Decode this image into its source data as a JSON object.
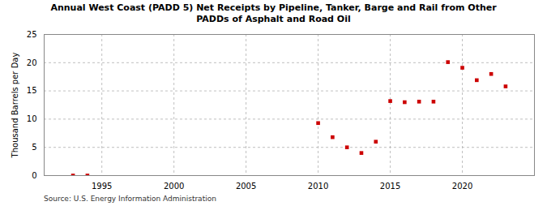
{
  "chart_data": {
    "type": "scatter",
    "title": "Annual West Coast (PADD 5) Net Receipts by Pipeline, Tanker, Barge and Rail from Other\nPADDs of Asphalt and Road Oil",
    "ylabel": "Thousand Barrels per Day",
    "annotations": [
      "Source: U.S. Energy Information Administration"
    ],
    "x": [
      1993,
      1994,
      2010,
      2011,
      2012,
      2013,
      2014,
      2015,
      2016,
      2017,
      2018,
      2019,
      2020,
      2021,
      2022,
      2023
    ],
    "values": [
      0.0,
      0.0,
      9.3,
      6.8,
      5.0,
      4.0,
      6.0,
      13.2,
      13.0,
      13.1,
      13.1,
      20.1,
      19.1,
      16.9,
      18.0,
      15.8
    ],
    "color": "#cc0000",
    "marker": "square",
    "xlim": [
      1991,
      2025
    ],
    "xticks": [
      1995,
      2000,
      2005,
      2010,
      2015,
      2020
    ],
    "ylim": [
      0,
      25
    ],
    "yticks": [
      0,
      5,
      10,
      15,
      20,
      25
    ],
    "grid": true
  }
}
